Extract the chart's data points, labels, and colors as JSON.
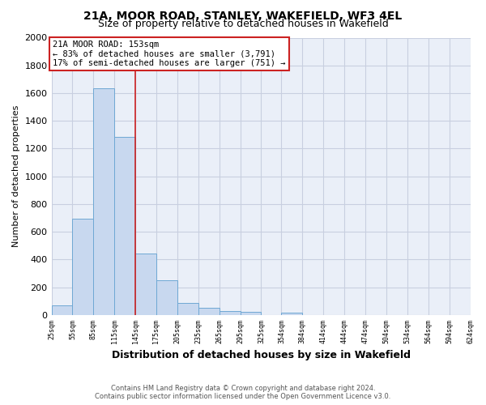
{
  "title": "21A, MOOR ROAD, STANLEY, WAKEFIELD, WF3 4EL",
  "subtitle": "Size of property relative to detached houses in Wakefield",
  "xlabel": "Distribution of detached houses by size in Wakefield",
  "ylabel": "Number of detached properties",
  "bar_color": "#c8d8ef",
  "bar_edge_color": "#6fa8d4",
  "plot_bg_color": "#eaeff8",
  "fig_bg_color": "#ffffff",
  "grid_color": "#c8cfe0",
  "annotation_box_color": "#cc2222",
  "vline_color": "#cc2222",
  "vline_x": 145,
  "annotation_title": "21A MOOR ROAD: 153sqm",
  "annotation_line1": "← 83% of detached houses are smaller (3,791)",
  "annotation_line2": "17% of semi-detached houses are larger (751) →",
  "footer_line1": "Contains HM Land Registry data © Crown copyright and database right 2024.",
  "footer_line2": "Contains public sector information licensed under the Open Government Licence v3.0.",
  "bin_edges": [
    25,
    55,
    85,
    115,
    145,
    175,
    205,
    235,
    265,
    295,
    325,
    354,
    384,
    414,
    444,
    474,
    504,
    534,
    564,
    594,
    624
  ],
  "counts": [
    68,
    697,
    1633,
    1285,
    440,
    253,
    88,
    50,
    30,
    25,
    0,
    15,
    0,
    0,
    0,
    0,
    0,
    0,
    0,
    0
  ],
  "ylim": [
    0,
    2000
  ],
  "yticks": [
    0,
    200,
    400,
    600,
    800,
    1000,
    1200,
    1400,
    1600,
    1800,
    2000
  ],
  "title_fontsize": 10,
  "subtitle_fontsize": 9
}
